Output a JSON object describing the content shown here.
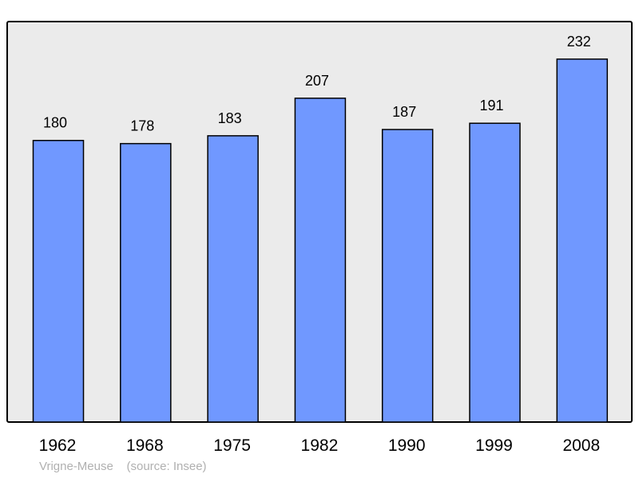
{
  "chart_data": {
    "type": "bar",
    "categories": [
      "1962",
      "1968",
      "1975",
      "1982",
      "1990",
      "1999",
      "2008"
    ],
    "values": [
      180,
      178,
      183,
      207,
      187,
      191,
      232
    ],
    "data_labels": [
      "180",
      "178",
      "183",
      "207",
      "187",
      "191",
      "232"
    ],
    "title": "",
    "xlabel": "",
    "ylabel": "",
    "ylim": [
      0,
      256
    ],
    "grid": false,
    "colors": {
      "bar": "#7098ff",
      "plot_background": "#ebebeb",
      "border": "#000000"
    }
  },
  "footer": {
    "place": "Vrigne-Meuse",
    "source": "(source: Insee)"
  }
}
